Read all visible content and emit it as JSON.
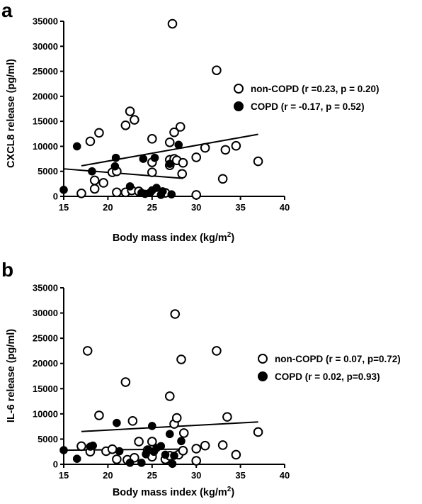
{
  "chart_data": [
    {
      "type": "scatter",
      "panel_label": "a",
      "xlabel": "Body mass index (kg/m",
      "xlabel_sup": "2",
      "xlabel_end": ")",
      "ylabel": "CXCL8 release (pg/ml)",
      "xlim": [
        15,
        40
      ],
      "ylim": [
        0,
        35000
      ],
      "xticks": [
        "15",
        "20",
        "25",
        "30",
        "35",
        "40"
      ],
      "yticks": [
        "0",
        "5000",
        "10000",
        "15000",
        "20000",
        "25000",
        "30000",
        "35000"
      ],
      "legend_position": "right",
      "series": [
        {
          "name": "non-COPD (r =0.23, p = 0.20)",
          "marker": "open-circle",
          "x": [
            17.0,
            18.0,
            18.5,
            18.5,
            19.0,
            19.5,
            20.5,
            21.0,
            21.0,
            22.0,
            22.0,
            22.5,
            22.7,
            23.0,
            23.5,
            25.0,
            25.0,
            25.0,
            26.5,
            27.0,
            27.0,
            27.0,
            27.3,
            27.5,
            27.5,
            27.8,
            28.2,
            28.4,
            28.5,
            30.0,
            30.0,
            31.0,
            32.3,
            33.0,
            33.3,
            34.5,
            37.0
          ],
          "y": [
            600,
            11000,
            3200,
            1500,
            12700,
            2700,
            4800,
            800,
            5000,
            14200,
            800,
            17000,
            1200,
            15300,
            1000,
            11500,
            6800,
            4800,
            700,
            7300,
            10800,
            6200,
            34500,
            7500,
            12800,
            7200,
            13900,
            4500,
            6700,
            7800,
            300,
            9700,
            25200,
            3500,
            9300,
            10100,
            7000
          ],
          "fit": {
            "x": [
              17,
              37
            ],
            "y": [
              6100,
              12400
            ]
          }
        },
        {
          "name": "COPD (r = -0.17, p = 0.52)",
          "marker": "filled-circle",
          "x": [
            15.0,
            16.5,
            18.2,
            20.8,
            20.9,
            22.5,
            23.8,
            24.0,
            24.2,
            24.8,
            25.0,
            25.3,
            25.5,
            26.0,
            26.2,
            27.0,
            27.2,
            28.0
          ],
          "y": [
            1300,
            10000,
            5000,
            6000,
            7700,
            2000,
            700,
            7500,
            500,
            800,
            1200,
            7700,
            1700,
            300,
            1000,
            6500,
            400,
            10300
          ],
          "fit": {
            "x": [
              15,
              28.5
            ],
            "y": [
              5500,
              3600
            ]
          }
        }
      ]
    },
    {
      "type": "scatter",
      "panel_label": "b",
      "xlabel": "Body mass index (kg/m",
      "xlabel_sup": "2",
      "xlabel_end": ")",
      "ylabel": "IL-6 release (pg/ml)",
      "xlim": [
        15,
        40
      ],
      "ylim": [
        0,
        35000
      ],
      "xticks": [
        "15",
        "20",
        "25",
        "30",
        "35",
        "40"
      ],
      "yticks": [
        "0",
        "5000",
        "10000",
        "15000",
        "20000",
        "25000",
        "30000",
        "35000"
      ],
      "legend_position": "right",
      "series": [
        {
          "name": "non-COPD (r = 0.07, p=0.72)",
          "marker": "open-circle",
          "x": [
            17.0,
            17.7,
            18.0,
            19.0,
            19.8,
            20.5,
            21.0,
            22.0,
            22.2,
            22.8,
            23.0,
            23.5,
            24.5,
            25.0,
            25.0,
            26.5,
            27.0,
            27.0,
            27.5,
            27.6,
            27.8,
            28.0,
            28.3,
            28.5,
            28.6,
            30.0,
            30.0,
            31.0,
            32.3,
            33.0,
            33.5,
            34.5,
            37.0
          ],
          "y": [
            3600,
            22500,
            2500,
            9700,
            2600,
            3000,
            1000,
            16300,
            900,
            8600,
            1300,
            4500,
            2800,
            1500,
            4500,
            1000,
            13500,
            1700,
            8000,
            29800,
            9200,
            1900,
            20800,
            2700,
            6200,
            3100,
            700,
            3700,
            22500,
            3800,
            9400,
            1900,
            6400
          ],
          "fit": {
            "x": [
              17,
              37
            ],
            "y": [
              6500,
              8400
            ]
          }
        },
        {
          "name": "COPD (r = 0.02, p=0.93)",
          "marker": "filled-circle",
          "x": [
            15.0,
            16.5,
            18.0,
            18.3,
            21.0,
            21.3,
            22.5,
            23.8,
            24.3,
            24.6,
            25.0,
            25.2,
            25.5,
            26.0,
            26.5,
            27.0,
            27.3,
            27.5,
            28.3
          ],
          "y": [
            2800,
            1100,
            3500,
            3700,
            8200,
            2600,
            300,
            300,
            2000,
            2800,
            7600,
            2500,
            3200,
            3600,
            1900,
            6000,
            100,
            1700,
            4600
          ],
          "fit": {
            "x": [
              15,
              28.5
            ],
            "y": [
              2800,
              3000
            ]
          }
        }
      ]
    }
  ]
}
